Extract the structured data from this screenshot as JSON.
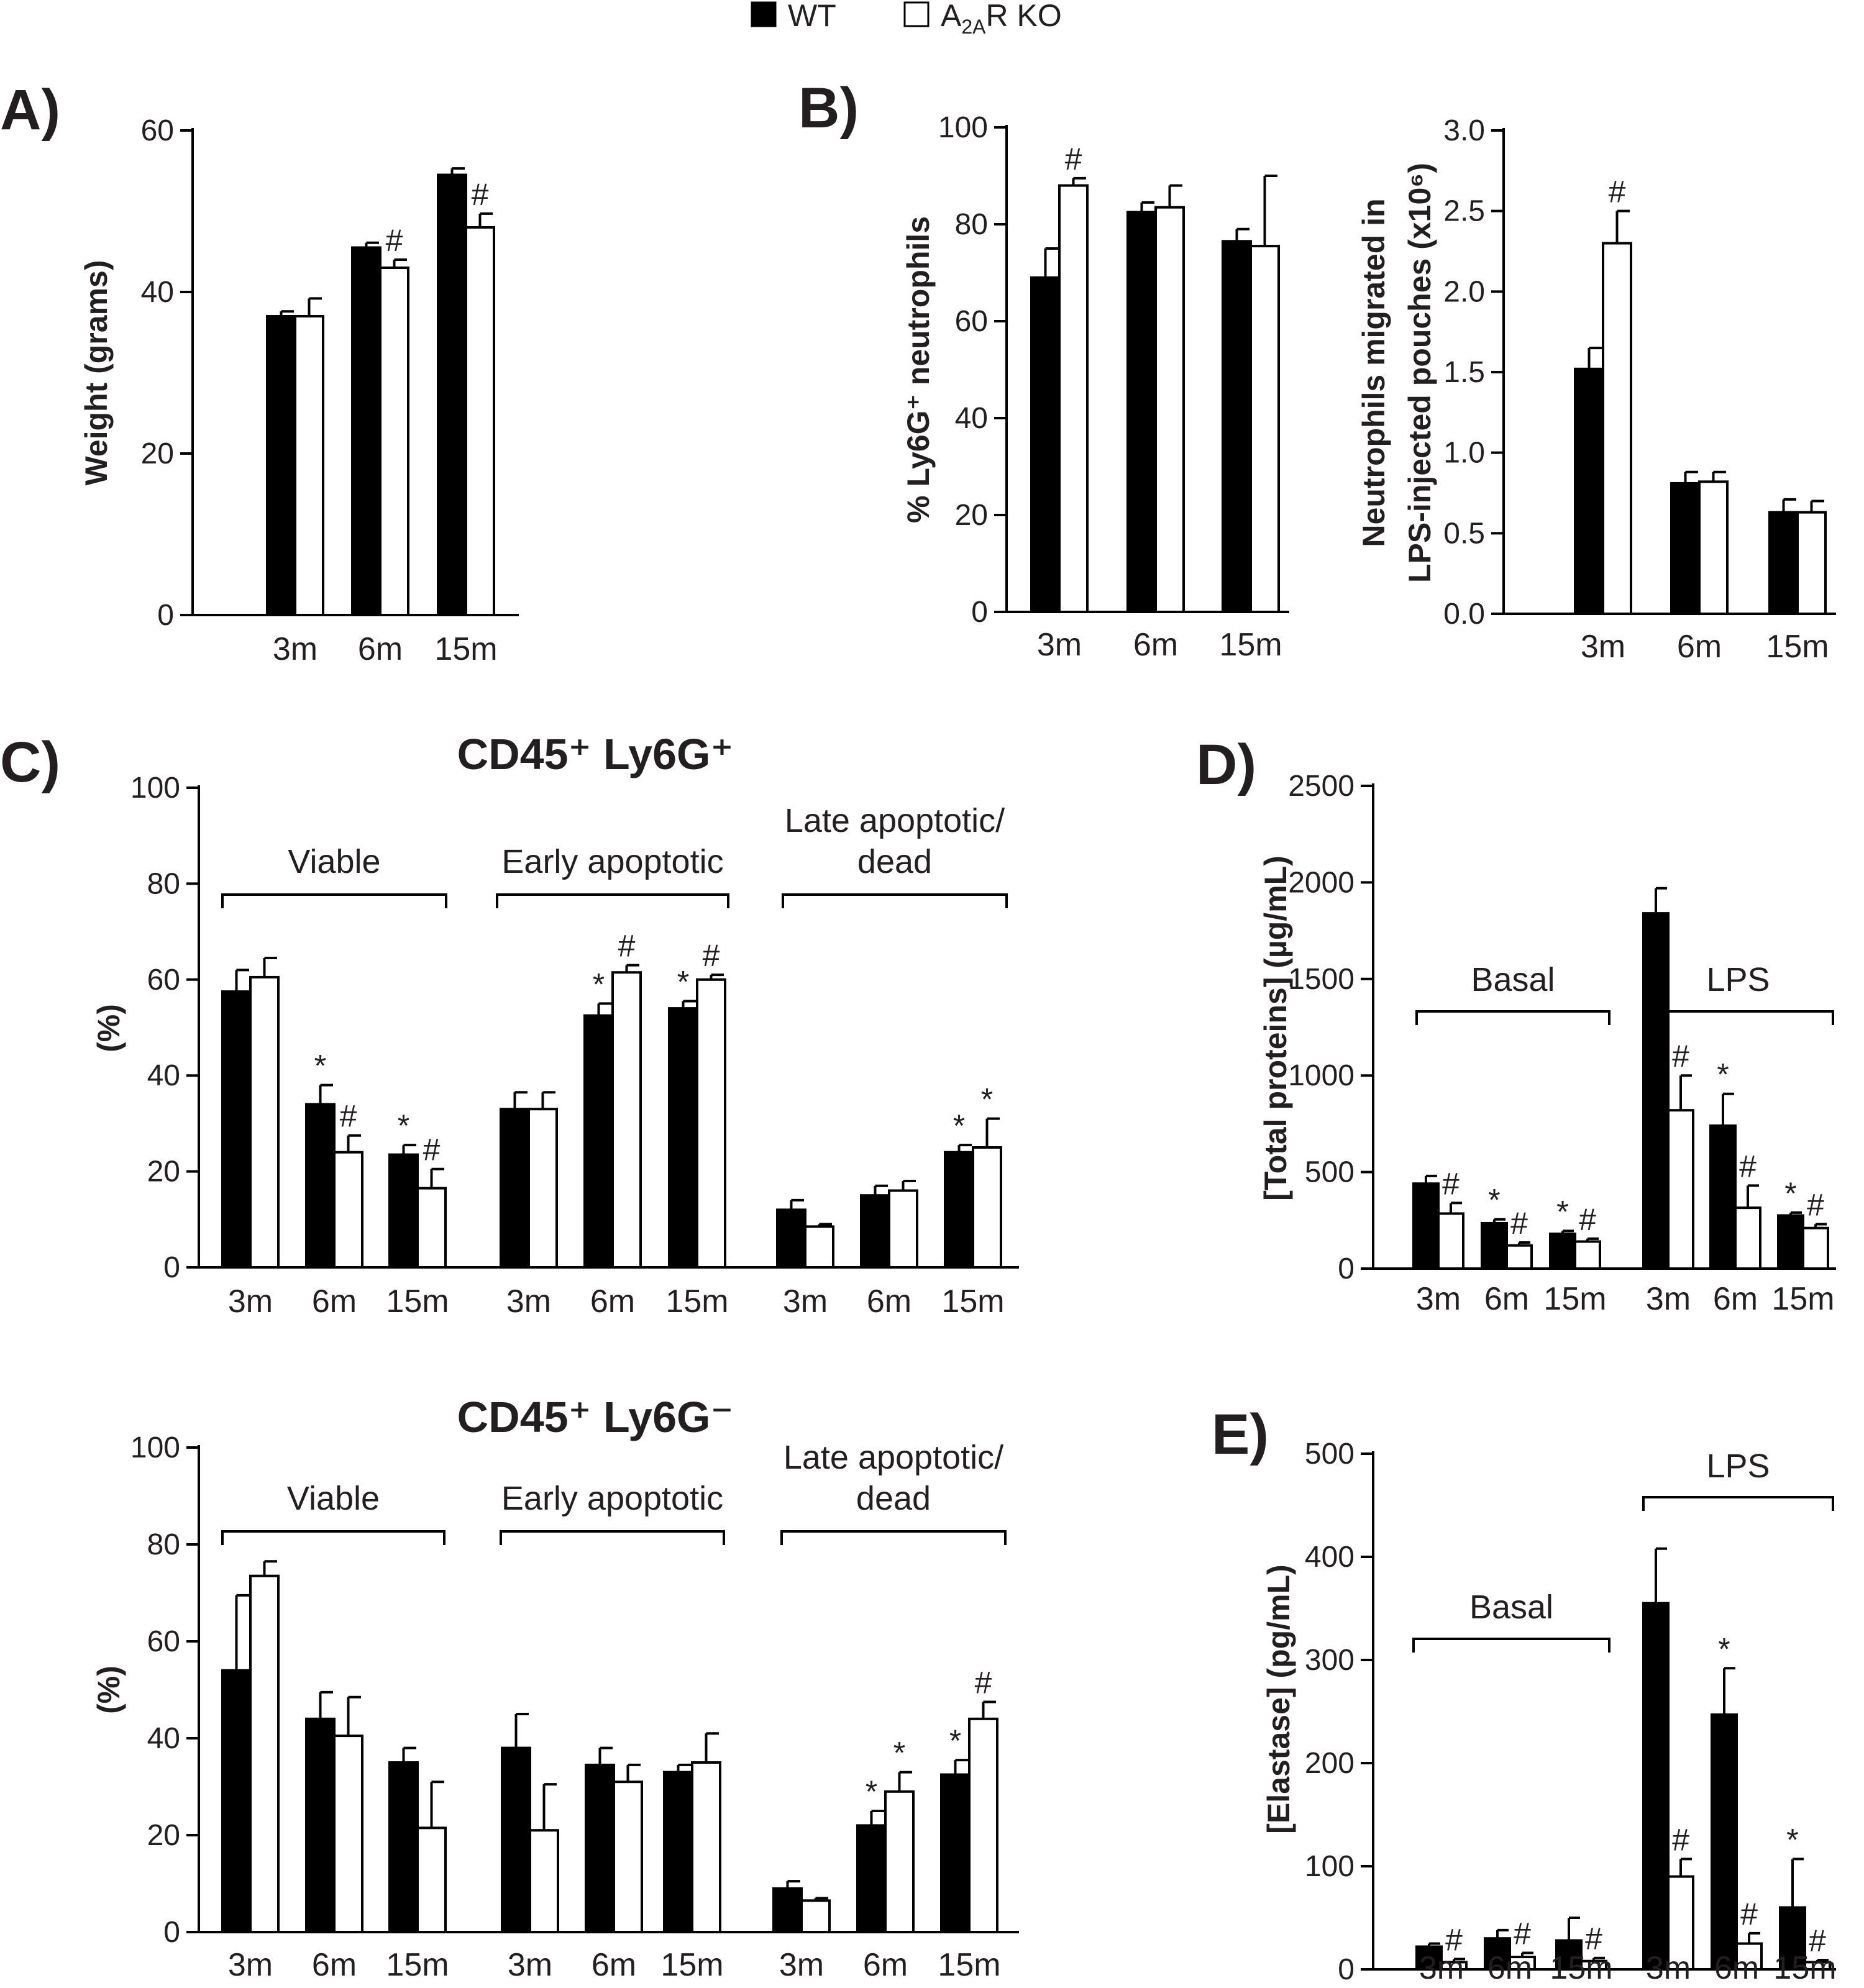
{
  "legend": {
    "series_names": [
      "WT",
      "A2AR KO"
    ],
    "wt": "WT",
    "ko_main": "A",
    "ko_sub": "2A",
    "ko_rest": "R KO",
    "colors": {
      "wt": "#000000",
      "ko": "#ffffff",
      "stroke": "#000000"
    }
  },
  "panel_labels": [
    "A)",
    "B)",
    "C)",
    "D)",
    "E)"
  ],
  "chart_data": [
    {
      "id": "A",
      "panel": "A)",
      "type": "bar",
      "title": "",
      "ylabel": "Weight (grams)",
      "xlabel": "",
      "ylim": [
        0,
        60
      ],
      "yticks": [
        0,
        20,
        40,
        60
      ],
      "tick_decimals": 0,
      "categories": [
        "3m",
        "6m",
        "15m"
      ],
      "series": [
        {
          "name": "WT",
          "values": [
            37,
            45.5,
            54.5
          ],
          "errors": [
            0.6,
            0.6,
            0.8
          ],
          "marks": [
            "",
            "",
            ""
          ]
        },
        {
          "name": "A2AR KO",
          "values": [
            37,
            43,
            48
          ],
          "errors": [
            2.2,
            1.0,
            1.7
          ],
          "marks": [
            "",
            "#",
            "#"
          ]
        }
      ]
    },
    {
      "id": "B1",
      "panel": "B)",
      "type": "bar",
      "title": "",
      "ylabel": "% Ly6G⁺ neutrophils",
      "xlabel": "",
      "ylim": [
        0,
        100
      ],
      "yticks": [
        0,
        20,
        40,
        60,
        80,
        100
      ],
      "tick_decimals": 0,
      "categories": [
        "3m",
        "6m",
        "15m"
      ],
      "series": [
        {
          "name": "WT",
          "values": [
            69,
            82.5,
            76.5
          ],
          "errors": [
            6,
            2,
            2.5
          ],
          "marks": [
            "",
            "",
            ""
          ]
        },
        {
          "name": "A2AR KO",
          "values": [
            88,
            83.5,
            75.5
          ],
          "errors": [
            1.5,
            4.5,
            14.5
          ],
          "marks": [
            "#",
            "",
            ""
          ]
        }
      ]
    },
    {
      "id": "B2",
      "panel": "",
      "type": "bar",
      "title": "",
      "ylabel": "Neutrophils migrated in LPS-injected pouches (x10⁶)",
      "xlabel": "",
      "ylabel_lines": [
        "Neutrophils migrated in",
        "LPS-injected pouches (x10⁶)"
      ],
      "ylim": [
        0,
        3.0
      ],
      "yticks": [
        0,
        0.5,
        1.0,
        1.5,
        2.0,
        2.5,
        3.0
      ],
      "tick_decimals": 1,
      "categories": [
        "3m",
        "6m",
        "15m"
      ],
      "series": [
        {
          "name": "WT",
          "values": [
            1.52,
            0.81,
            0.63
          ],
          "errors": [
            0.13,
            0.07,
            0.08
          ],
          "marks": [
            "",
            "",
            ""
          ]
        },
        {
          "name": "A2AR KO",
          "values": [
            2.3,
            0.82,
            0.63
          ],
          "errors": [
            0.2,
            0.06,
            0.07
          ],
          "marks": [
            "#",
            "",
            ""
          ]
        }
      ]
    },
    {
      "id": "C1",
      "panel": "C)",
      "type": "bar",
      "title": "CD45⁺ Ly6G⁺",
      "ylabel": "(%)",
      "xlabel": "",
      "ylim": [
        0,
        100
      ],
      "yticks": [
        0,
        20,
        40,
        60,
        80,
        100
      ],
      "tick_decimals": 0,
      "groups": [
        [
          "Viable"
        ],
        [
          "Early apoptotic"
        ],
        [
          "Late apoptotic/",
          "dead"
        ]
      ],
      "categories": [
        "3m",
        "6m",
        "15m",
        "3m",
        "6m",
        "15m",
        "3m",
        "6m",
        "15m"
      ],
      "series": [
        {
          "name": "WT",
          "values": [
            57.5,
            34,
            23.5,
            33,
            52.5,
            54,
            12,
            15,
            24
          ],
          "errors": [
            4.5,
            4,
            2,
            3.5,
            2.5,
            1.5,
            2,
            2,
            1.5
          ],
          "marks": [
            "",
            "*",
            "*",
            "",
            "*",
            "*",
            "",
            "",
            "*"
          ]
        },
        {
          "name": "A2AR KO",
          "values": [
            60.5,
            24,
            16.5,
            33,
            61.5,
            60,
            8.5,
            16,
            25
          ],
          "errors": [
            4,
            3.5,
            4,
            3.5,
            1.5,
            1,
            0.5,
            2,
            6
          ],
          "marks": [
            "",
            "#",
            "#",
            "",
            "#",
            "#",
            "",
            "",
            "*"
          ]
        }
      ]
    },
    {
      "id": "C2",
      "panel": "",
      "type": "bar",
      "title": "CD45⁺ Ly6G⁻",
      "ylabel": "(%)",
      "xlabel": "",
      "ylim": [
        0,
        100
      ],
      "yticks": [
        0,
        20,
        40,
        60,
        80,
        100
      ],
      "tick_decimals": 0,
      "groups": [
        [
          "Viable"
        ],
        [
          "Early apoptotic"
        ],
        [
          "Late apoptotic/",
          "dead"
        ]
      ],
      "categories": [
        "3m",
        "6m",
        "15m",
        "3m",
        "6m",
        "15m",
        "3m",
        "6m",
        "15m"
      ],
      "series": [
        {
          "name": "WT",
          "values": [
            54,
            44,
            35,
            38,
            34.5,
            33,
            9,
            22,
            32.5
          ],
          "errors": [
            15.5,
            5.5,
            3,
            7,
            3.5,
            1.5,
            1.5,
            3,
            3
          ],
          "marks": [
            "",
            "",
            "",
            "",
            "",
            "",
            "",
            "*",
            "*"
          ]
        },
        {
          "name": "A2AR KO",
          "values": [
            73.5,
            40.5,
            21.5,
            21,
            31,
            35,
            6.5,
            29,
            44
          ],
          "errors": [
            3,
            8,
            9.5,
            9.5,
            3.5,
            6,
            0.5,
            4,
            3.5
          ],
          "marks": [
            "",
            "",
            "",
            "",
            "",
            "",
            "",
            "*",
            "#"
          ]
        }
      ]
    },
    {
      "id": "D",
      "panel": "D)",
      "type": "bar",
      "title": "",
      "ylabel": "[Total proteins] (µg/mL)",
      "xlabel": "",
      "ylim": [
        0,
        2500
      ],
      "yticks": [
        0,
        500,
        1000,
        1500,
        2000,
        2500
      ],
      "tick_decimals": 0,
      "groups": [
        [
          "Basal"
        ],
        [
          "LPS"
        ]
      ],
      "categories": [
        "3m",
        "6m",
        "15m",
        "3m",
        "6m",
        "15m"
      ],
      "series": [
        {
          "name": "WT",
          "values": [
            440,
            235,
            180,
            1840,
            740,
            275
          ],
          "errors": [
            40,
            20,
            15,
            130,
            165,
            15
          ],
          "marks": [
            "",
            "*",
            "*",
            "",
            "*",
            "*"
          ]
        },
        {
          "name": "A2AR KO",
          "values": [
            285,
            120,
            140,
            820,
            315,
            210
          ],
          "errors": [
            55,
            15,
            15,
            180,
            115,
            20
          ],
          "marks": [
            "#",
            "#",
            "#",
            "#",
            "#",
            "#"
          ]
        }
      ]
    },
    {
      "id": "E",
      "panel": "E)",
      "type": "bar",
      "title": "",
      "ylabel": "[Elastase] (pg/mL)",
      "xlabel": "",
      "ylim": [
        0,
        500
      ],
      "yticks": [
        0,
        100,
        200,
        300,
        400,
        500
      ],
      "tick_decimals": 0,
      "groups": [
        [
          "Basal"
        ],
        [
          "LPS"
        ]
      ],
      "categories": [
        "3m",
        "6m",
        "15m",
        "3m",
        "6m",
        "15m"
      ],
      "series": [
        {
          "name": "WT",
          "values": [
            22,
            30,
            28,
            355,
            247,
            60
          ],
          "errors": [
            3,
            8,
            22,
            53,
            45,
            47
          ],
          "marks": [
            "",
            "",
            "",
            "",
            "*",
            "*"
          ]
        },
        {
          "name": "A2AR KO",
          "values": [
            7,
            12,
            8,
            90,
            25,
            7
          ],
          "errors": [
            3,
            4,
            3,
            17,
            10,
            2
          ],
          "marks": [
            "#",
            "#",
            "#",
            "#",
            "#",
            "#"
          ]
        }
      ]
    }
  ]
}
